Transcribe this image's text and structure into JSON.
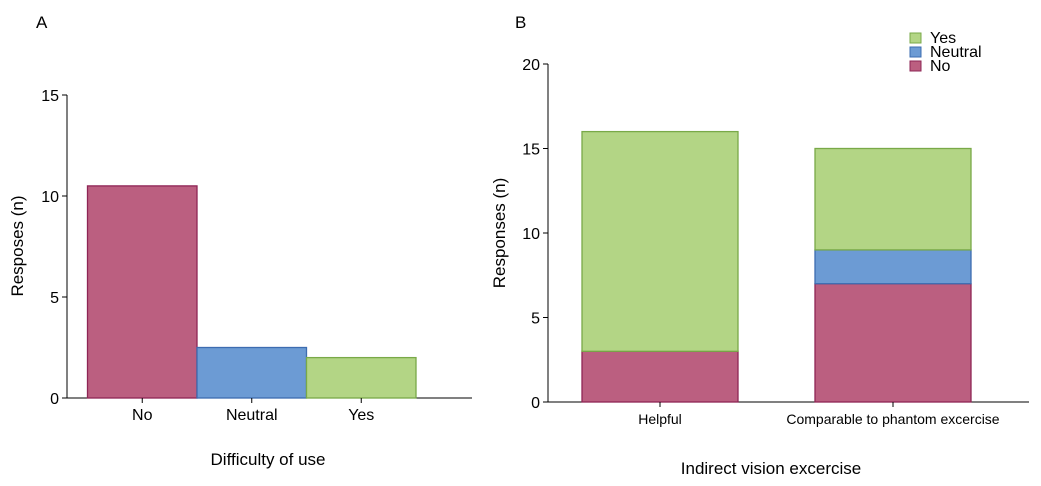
{
  "colors": {
    "no": "#bb5f80",
    "neutral": "#6c9bd4",
    "yes": "#b3d585"
  },
  "chart_data": [
    {
      "panel_label": "A",
      "type": "bar",
      "xlabel": "Difficulty of use",
      "ylabel": "Resposes (n)",
      "ylim": [
        0,
        15
      ],
      "yticks": [
        "0",
        "5",
        "10",
        "15"
      ],
      "categories": [
        "No",
        "Neutral",
        "Yes"
      ],
      "values": [
        10.5,
        2.5,
        2
      ],
      "bar_colors": [
        "#bb5f80",
        "#6c9bd4",
        "#b3d585"
      ],
      "edge_colors": [
        "#8e2555",
        "#3d6cb0",
        "#79a948"
      ],
      "grid": false
    },
    {
      "panel_label": "B",
      "type": "bar",
      "stacked": true,
      "xlabel": "Indirect vision excercise",
      "ylabel": "Responses (n)",
      "ylim": [
        0,
        20
      ],
      "yticks": [
        "0",
        "5",
        "10",
        "15",
        "20"
      ],
      "categories": [
        "Helpful",
        "Comparable to phantom excercise"
      ],
      "series": [
        {
          "name": "No",
          "values": [
            3,
            7
          ],
          "color": "#bb5f80",
          "edge": "#8e2555"
        },
        {
          "name": "Neutral",
          "values": [
            0,
            2
          ],
          "color": "#6c9bd4",
          "edge": "#3d6cb0"
        },
        {
          "name": "Yes",
          "values": [
            13,
            6
          ],
          "color": "#b3d585",
          "edge": "#79a948"
        }
      ],
      "legend": {
        "placement": "top-right",
        "order": [
          "Yes",
          "Neutral",
          "No"
        ]
      },
      "grid": false
    }
  ]
}
